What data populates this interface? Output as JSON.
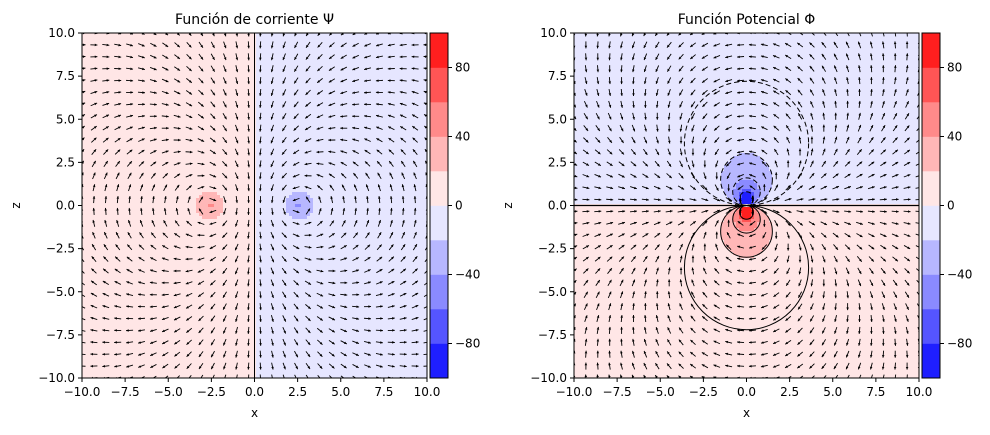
{
  "chart_data": [
    {
      "type": "filled-contour+quiver",
      "title": "Función de corriente Ψ",
      "xlabel": "x",
      "ylabel": "z",
      "xlim": [
        -10.0,
        10.0
      ],
      "ylim": [
        -10.0,
        10.0
      ],
      "xticks": [
        "−10.0",
        "−7.5",
        "−5.0",
        "−2.5",
        "0.0",
        "2.5",
        "5.0",
        "7.5",
        "10.0"
      ],
      "yticks": [
        "−10.0",
        "−7.5",
        "−5.0",
        "−2.5",
        "0.0",
        "2.5",
        "5.0",
        "7.5",
        "10.0"
      ],
      "field": "stream",
      "vortices": [
        {
          "x": -2.5,
          "z": 0.0,
          "sign": 1
        },
        {
          "x": 2.5,
          "z": 0.0,
          "sign": -1
        }
      ],
      "colorbar": {
        "levels": [
          -100,
          -80,
          -60,
          -40,
          -20,
          0,
          20,
          40,
          60,
          80,
          100
        ],
        "ticks": [
          "80",
          "40",
          "0",
          "−40",
          "−80"
        ],
        "tick_values": [
          80,
          40,
          0,
          -40,
          -80
        ]
      }
    },
    {
      "type": "filled-contour+quiver",
      "title": "Función Potencial Φ",
      "xlabel": "x",
      "ylabel": "z",
      "xlim": [
        -10.0,
        10.0
      ],
      "ylim": [
        -10.0,
        10.0
      ],
      "xticks": [
        "−10.0",
        "−7.5",
        "−5.0",
        "−2.5",
        "0.0",
        "2.5",
        "5.0",
        "7.5",
        "10.0"
      ],
      "yticks": [
        "−10.0",
        "−7.5",
        "−5.0",
        "−2.5",
        "0.0",
        "2.5",
        "5.0",
        "7.5",
        "10.0"
      ],
      "field": "potential",
      "dipole": {
        "x": 0.0,
        "z": 0.0
      },
      "contour_circle_radii": [
        3.6,
        1.5,
        0.8,
        0.4
      ],
      "colorbar": {
        "levels": [
          -100,
          -80,
          -60,
          -40,
          -20,
          0,
          20,
          40,
          60,
          80,
          100
        ],
        "ticks": [
          "80",
          "40",
          "0",
          "−40",
          "−80"
        ],
        "tick_values": [
          80,
          40,
          0,
          -40,
          -80
        ]
      }
    }
  ],
  "colors": {
    "band_colors": [
      "#1f1fff",
      "#5555ff",
      "#8a8aff",
      "#b7b7ff",
      "#e6e6ff",
      "#ffe6e6",
      "#ffb7b7",
      "#ff8a8a",
      "#ff5555",
      "#ff1f1f"
    ],
    "arrow": "#000000"
  }
}
